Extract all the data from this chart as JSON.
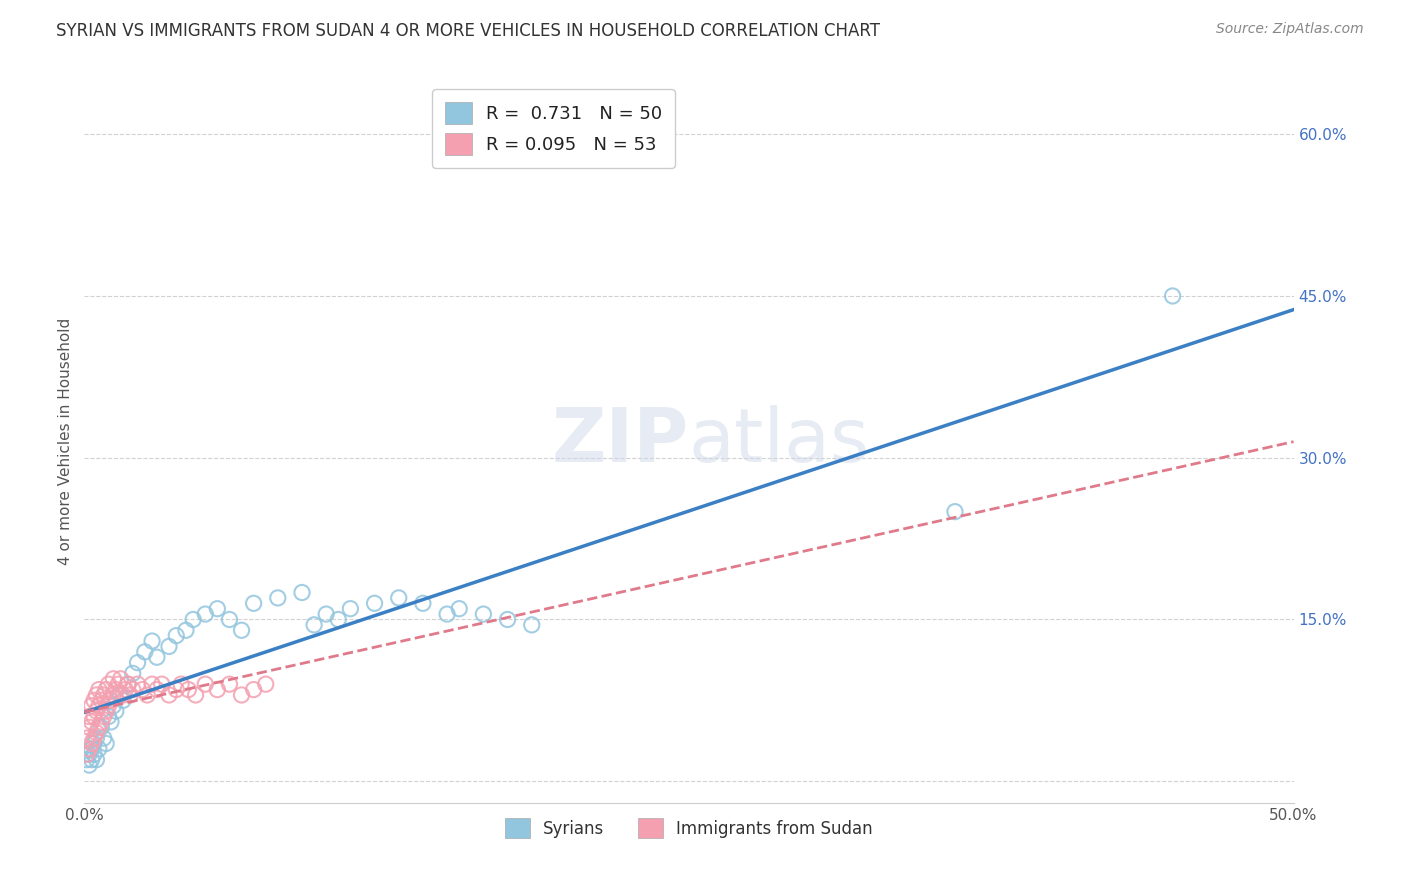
{
  "title": "SYRIAN VS IMMIGRANTS FROM SUDAN 4 OR MORE VEHICLES IN HOUSEHOLD CORRELATION CHART",
  "source": "Source: ZipAtlas.com",
  "ylabel": "4 or more Vehicles in Household",
  "xlim": [
    0.0,
    0.5
  ],
  "ylim": [
    -0.02,
    0.65
  ],
  "xticks": [
    0.0,
    0.1,
    0.2,
    0.3,
    0.4,
    0.5
  ],
  "xticklabels": [
    "0.0%",
    "",
    "",
    "",
    "",
    "50.0%"
  ],
  "yticks": [
    0.0,
    0.15,
    0.3,
    0.45,
    0.6
  ],
  "yticklabels": [
    "",
    "15.0%",
    "30.0%",
    "45.0%",
    "60.0%"
  ],
  "syrians_R": 0.731,
  "syrians_N": 50,
  "sudan_R": 0.095,
  "sudan_N": 53,
  "color_syrians": "#92c5de",
  "color_sudan": "#f4a0b0",
  "color_line_syrians": "#3b7fc4",
  "color_line_sudan": "#e07a8a",
  "legend_label_syrians": "Syrians",
  "legend_label_sudan": "Immigrants from Sudan",
  "watermark_zip": "ZIP",
  "watermark_atlas": "atlas",
  "syrians_x": [
    0.001,
    0.002,
    0.002,
    0.003,
    0.003,
    0.004,
    0.004,
    0.005,
    0.005,
    0.006,
    0.007,
    0.008,
    0.009,
    0.01,
    0.011,
    0.012,
    0.013,
    0.015,
    0.016,
    0.018,
    0.02,
    0.022,
    0.025,
    0.028,
    0.03,
    0.035,
    0.038,
    0.042,
    0.045,
    0.05,
    0.055,
    0.06,
    0.065,
    0.07,
    0.08,
    0.09,
    0.095,
    0.1,
    0.105,
    0.11,
    0.12,
    0.13,
    0.14,
    0.15,
    0.155,
    0.165,
    0.175,
    0.185,
    0.36,
    0.45
  ],
  "syrians_y": [
    0.02,
    0.015,
    0.025,
    0.02,
    0.03,
    0.025,
    0.035,
    0.02,
    0.04,
    0.03,
    0.05,
    0.04,
    0.035,
    0.06,
    0.055,
    0.07,
    0.065,
    0.08,
    0.075,
    0.09,
    0.1,
    0.11,
    0.12,
    0.13,
    0.115,
    0.125,
    0.135,
    0.14,
    0.15,
    0.155,
    0.16,
    0.15,
    0.14,
    0.165,
    0.17,
    0.175,
    0.145,
    0.155,
    0.15,
    0.16,
    0.165,
    0.17,
    0.165,
    0.155,
    0.16,
    0.155,
    0.15,
    0.145,
    0.25,
    0.45
  ],
  "sudan_x": [
    0.001,
    0.001,
    0.002,
    0.002,
    0.002,
    0.003,
    0.003,
    0.003,
    0.004,
    0.004,
    0.004,
    0.005,
    0.005,
    0.005,
    0.006,
    0.006,
    0.006,
    0.007,
    0.007,
    0.008,
    0.008,
    0.009,
    0.009,
    0.01,
    0.01,
    0.011,
    0.012,
    0.012,
    0.013,
    0.014,
    0.015,
    0.016,
    0.017,
    0.018,
    0.019,
    0.02,
    0.022,
    0.024,
    0.026,
    0.028,
    0.03,
    0.032,
    0.035,
    0.038,
    0.04,
    0.043,
    0.046,
    0.05,
    0.055,
    0.06,
    0.065,
    0.07,
    0.075
  ],
  "sudan_y": [
    0.025,
    0.04,
    0.03,
    0.05,
    0.06,
    0.035,
    0.055,
    0.07,
    0.04,
    0.06,
    0.075,
    0.045,
    0.065,
    0.08,
    0.05,
    0.07,
    0.085,
    0.055,
    0.075,
    0.06,
    0.08,
    0.065,
    0.085,
    0.07,
    0.09,
    0.075,
    0.08,
    0.095,
    0.085,
    0.09,
    0.095,
    0.08,
    0.085,
    0.09,
    0.08,
    0.085,
    0.09,
    0.085,
    0.08,
    0.09,
    0.085,
    0.09,
    0.08,
    0.085,
    0.09,
    0.085,
    0.08,
    0.09,
    0.085,
    0.09,
    0.08,
    0.085,
    0.09
  ]
}
